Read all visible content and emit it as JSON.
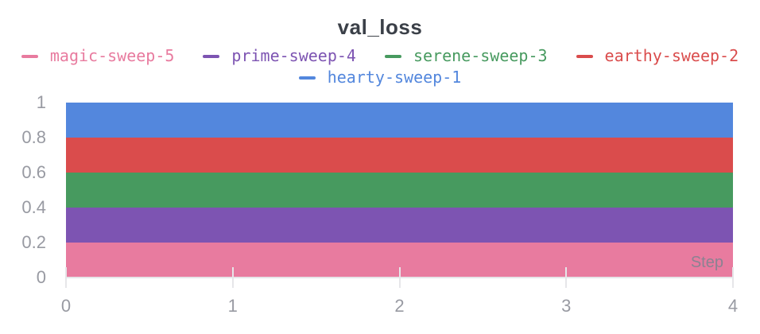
{
  "title": "val_loss",
  "colors": {
    "background": "#FFFFFF",
    "title_text": "#3B4048",
    "tick_text": "#989AA2",
    "axis_line": "#E6E6E9",
    "step_label": "#8B8292"
  },
  "chart_data": {
    "type": "area",
    "title": "val_loss",
    "xlabel": "Step",
    "ylabel": "",
    "xlim": [
      0,
      4
    ],
    "ylim": [
      0,
      1
    ],
    "x_ticks": [
      0,
      1,
      2,
      3,
      4
    ],
    "x_tick_labels": [
      "0",
      "1",
      "2",
      "3",
      "4"
    ],
    "y_ticks": [
      0,
      0.2,
      0.4,
      0.6,
      0.8,
      1
    ],
    "y_tick_labels": [
      "0",
      "0.2",
      "0.4",
      "0.6",
      "0.8",
      "1"
    ],
    "grid": false,
    "legend_position": "top",
    "legend_rows": [
      [
        "magic-sweep-5",
        "prime-sweep-4",
        "serene-sweep-3",
        "earthy-sweep-2"
      ],
      [
        "hearty-sweep-1"
      ]
    ],
    "series": [
      {
        "name": "hearty-sweep-1",
        "color": "#5387DD",
        "band": [
          0.8,
          1.0
        ]
      },
      {
        "name": "earthy-sweep-2",
        "color": "#DA4C4C",
        "band": [
          0.6,
          0.8
        ]
      },
      {
        "name": "serene-sweep-3",
        "color": "#479A5F",
        "band": [
          0.4,
          0.6
        ]
      },
      {
        "name": "prime-sweep-4",
        "color": "#7D54B2",
        "band": [
          0.2,
          0.4
        ]
      },
      {
        "name": "magic-sweep-5",
        "color": "#E87B9F",
        "band": [
          0.0,
          0.2
        ]
      }
    ]
  }
}
